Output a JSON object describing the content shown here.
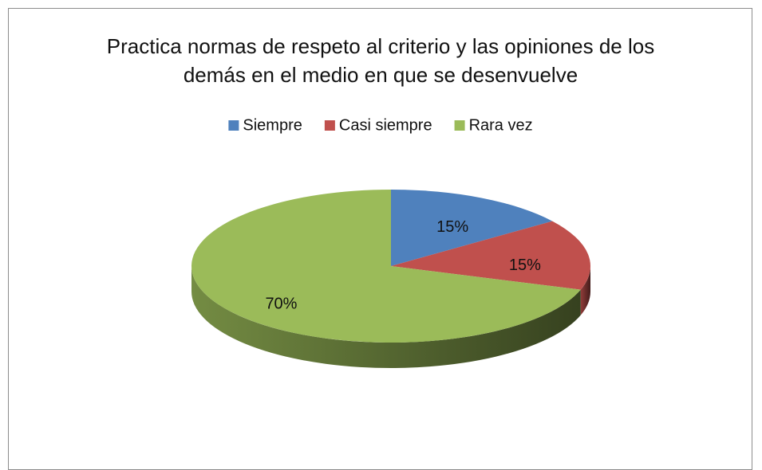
{
  "chart_data": {
    "type": "pie",
    "title": "Practica normas de respeto al criterio y las opiniones de los demás en el medio en que se desenvuelve",
    "categories": [
      "Siempre",
      "Casi siempre",
      "Rara vez"
    ],
    "values": [
      15,
      15,
      70
    ],
    "value_labels": [
      "15%",
      "15%",
      "70%"
    ],
    "colors": [
      "#4f81bd",
      "#c0504d",
      "#9bbb59"
    ],
    "legend": "top"
  }
}
